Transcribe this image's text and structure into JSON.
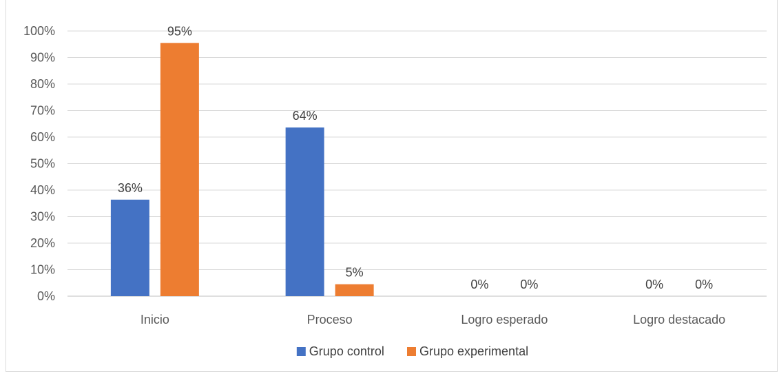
{
  "chart_data": {
    "type": "bar",
    "categories": [
      "Inicio",
      "Proceso",
      "Logro esperado",
      "Logro destacado"
    ],
    "series": [
      {
        "name": "Grupo control",
        "color": "#4472c4",
        "values": [
          36.4,
          63.6,
          0,
          0
        ],
        "labels": [
          "36%",
          "64%",
          "0%",
          "0%"
        ]
      },
      {
        "name": "Grupo experimental",
        "color": "#ed7d31",
        "values": [
          95.5,
          4.5,
          0,
          0
        ],
        "labels": [
          "95%",
          "5%",
          "0%",
          "0%"
        ]
      }
    ],
    "ylim": [
      0,
      100
    ],
    "yticks": [
      "0%",
      "10%",
      "20%",
      "30%",
      "40%",
      "50%",
      "60%",
      "70%",
      "80%",
      "90%",
      "100%"
    ],
    "grid": true,
    "legend": "bottom-center",
    "title": "",
    "xlabel": "",
    "ylabel": ""
  }
}
